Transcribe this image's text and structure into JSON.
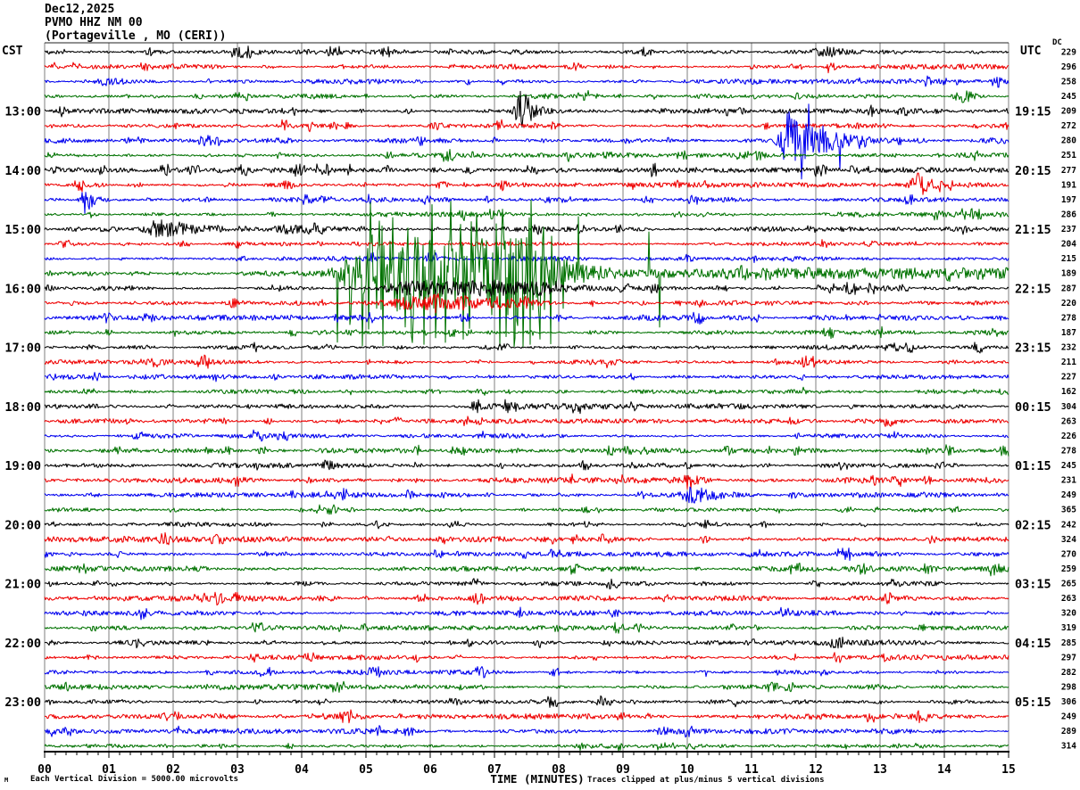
{
  "header": {
    "date": "Dec12,2025",
    "station_line": "PVMO HHZ NM 00",
    "location_line": "(Portageville , MO (CERI))"
  },
  "axes": {
    "left_tz": "CST",
    "right_tz": "UTC",
    "dc_label": "DC",
    "x_title": "TIME (MINUTES)",
    "x_tick_labels": [
      "00",
      "01",
      "02",
      "03",
      "04",
      "05",
      "06",
      "07",
      "08",
      "09",
      "10",
      "11",
      "12",
      "13",
      "14",
      "15"
    ]
  },
  "footer": {
    "division_note": "Each Vertical Division = 5000.00 microvolts",
    "clip_note": "Traces clipped at plus/minus 5 vertical divisions",
    "watermark": "M"
  },
  "chart_data": {
    "type": "line",
    "subtype": "helicorder-seismogram",
    "title": "Dec12,2025 PVMO HHZ NM 00 (Portageville , MO (CERI))",
    "xlabel": "TIME (MINUTES)",
    "x_range_minutes": [
      0,
      15
    ],
    "minutes_per_row": 15,
    "rows_per_hour": 4,
    "clip_divisions": 5,
    "microvolts_per_division": 5000,
    "grid_color": "#7f7f7f",
    "trace_colors": {
      "black": "#000000",
      "red": "#ee0000",
      "blue": "#0000ee",
      "green": "#007200"
    },
    "rows": [
      {
        "cst": "",
        "utc": "",
        "dc": 229,
        "color": "black"
      },
      {
        "cst": "",
        "utc": "",
        "dc": 296,
        "color": "red"
      },
      {
        "cst": "",
        "utc": "",
        "dc": 258,
        "color": "blue"
      },
      {
        "cst": "",
        "utc": "",
        "dc": 245,
        "color": "green"
      },
      {
        "cst": "13:00",
        "utc": "19:15",
        "dc": 209,
        "color": "black"
      },
      {
        "cst": "",
        "utc": "",
        "dc": 272,
        "color": "red"
      },
      {
        "cst": "",
        "utc": "",
        "dc": 280,
        "color": "blue"
      },
      {
        "cst": "",
        "utc": "",
        "dc": 251,
        "color": "green"
      },
      {
        "cst": "14:00",
        "utc": "20:15",
        "dc": 277,
        "color": "black"
      },
      {
        "cst": "",
        "utc": "",
        "dc": 191,
        "color": "red"
      },
      {
        "cst": "",
        "utc": "",
        "dc": 197,
        "color": "blue"
      },
      {
        "cst": "",
        "utc": "",
        "dc": 286,
        "color": "green"
      },
      {
        "cst": "15:00",
        "utc": "21:15",
        "dc": 237,
        "color": "black"
      },
      {
        "cst": "",
        "utc": "",
        "dc": 204,
        "color": "red"
      },
      {
        "cst": "",
        "utc": "",
        "dc": 215,
        "color": "blue"
      },
      {
        "cst": "",
        "utc": "",
        "dc": 189,
        "color": "green"
      },
      {
        "cst": "16:00",
        "utc": "22:15",
        "dc": 287,
        "color": "black"
      },
      {
        "cst": "",
        "utc": "",
        "dc": 220,
        "color": "red"
      },
      {
        "cst": "",
        "utc": "",
        "dc": 278,
        "color": "blue"
      },
      {
        "cst": "",
        "utc": "",
        "dc": 187,
        "color": "green"
      },
      {
        "cst": "17:00",
        "utc": "23:15",
        "dc": 232,
        "color": "black"
      },
      {
        "cst": "",
        "utc": "",
        "dc": 211,
        "color": "red"
      },
      {
        "cst": "",
        "utc": "",
        "dc": 227,
        "color": "blue"
      },
      {
        "cst": "",
        "utc": "",
        "dc": 162,
        "color": "green"
      },
      {
        "cst": "18:00",
        "utc": "00:15",
        "dc": 304,
        "color": "black"
      },
      {
        "cst": "",
        "utc": "",
        "dc": 263,
        "color": "red"
      },
      {
        "cst": "",
        "utc": "",
        "dc": 226,
        "color": "blue"
      },
      {
        "cst": "",
        "utc": "",
        "dc": 278,
        "color": "green"
      },
      {
        "cst": "19:00",
        "utc": "01:15",
        "dc": 245,
        "color": "black"
      },
      {
        "cst": "",
        "utc": "",
        "dc": 231,
        "color": "red"
      },
      {
        "cst": "",
        "utc": "",
        "dc": 249,
        "color": "blue"
      },
      {
        "cst": "",
        "utc": "",
        "dc": 365,
        "color": "green"
      },
      {
        "cst": "20:00",
        "utc": "02:15",
        "dc": 242,
        "color": "black"
      },
      {
        "cst": "",
        "utc": "",
        "dc": 324,
        "color": "red"
      },
      {
        "cst": "",
        "utc": "",
        "dc": 270,
        "color": "blue"
      },
      {
        "cst": "",
        "utc": "",
        "dc": 259,
        "color": "green"
      },
      {
        "cst": "21:00",
        "utc": "03:15",
        "dc": 265,
        "color": "black"
      },
      {
        "cst": "",
        "utc": "",
        "dc": 263,
        "color": "red"
      },
      {
        "cst": "",
        "utc": "",
        "dc": 320,
        "color": "blue"
      },
      {
        "cst": "",
        "utc": "",
        "dc": 319,
        "color": "green"
      },
      {
        "cst": "22:00",
        "utc": "04:15",
        "dc": 285,
        "color": "black"
      },
      {
        "cst": "",
        "utc": "",
        "dc": 297,
        "color": "red"
      },
      {
        "cst": "",
        "utc": "",
        "dc": 282,
        "color": "blue"
      },
      {
        "cst": "",
        "utc": "",
        "dc": 298,
        "color": "green"
      },
      {
        "cst": "23:00",
        "utc": "05:15",
        "dc": 306,
        "color": "black"
      },
      {
        "cst": "",
        "utc": "",
        "dc": 249,
        "color": "red"
      },
      {
        "cst": "",
        "utc": "",
        "dc": 289,
        "color": "blue"
      },
      {
        "cst": "",
        "utc": "",
        "dc": 314,
        "color": "green"
      }
    ],
    "events": [
      {
        "row": 0,
        "start": 11.5,
        "peak": 12.2,
        "end": 13.4,
        "amp": 0.35
      },
      {
        "row": 1,
        "start": 12.05,
        "peak": 12.2,
        "end": 12.6,
        "amp": 0.45
      },
      {
        "row": 2,
        "start": 0.5,
        "peak": 0.9,
        "end": 2.2,
        "amp": 0.3
      },
      {
        "row": 3,
        "start": 14.05,
        "peak": 14.3,
        "end": 14.75,
        "amp": 0.55
      },
      {
        "row": 4,
        "start": 7.25,
        "peak": 7.42,
        "end": 8.0,
        "amp": 1.6,
        "sp": 0.06,
        "smax": 3.2
      },
      {
        "row": 6,
        "start": 11.32,
        "peak": 11.55,
        "end": 13.3,
        "amp": 1.9,
        "sp": 0.05,
        "smax": 2.6
      },
      {
        "row": 9,
        "start": 13.35,
        "peak": 13.6,
        "end": 14.15,
        "amp": 0.8
      },
      {
        "row": 10,
        "start": 0.5,
        "peak": 0.62,
        "end": 1.05,
        "amp": 1.2,
        "sp": 0.12,
        "smax": 2.6
      },
      {
        "row": 12,
        "start": 1.35,
        "peak": 1.75,
        "end": 3.4,
        "amp": 0.75
      },
      {
        "row": 12,
        "start": 3.0,
        "peak": 3.8,
        "end": 5.6,
        "amp": 0.3
      },
      {
        "row": 15,
        "start": 3.5,
        "peak": 5.15,
        "pe": 7.5,
        "end": 9.9,
        "amp": 2.3,
        "rexp": 4,
        "sp": 0.25,
        "smax": 5
      },
      {
        "row": 15,
        "start": 9.0,
        "peak": 10.0,
        "pe": 15.0,
        "end": 15.0,
        "amp": 0.22
      },
      {
        "row": 16,
        "start": 4.9,
        "peak": 5.5,
        "pe": 7.8,
        "end": 8.7,
        "amp": 0.42
      },
      {
        "row": 17,
        "start": 5.0,
        "peak": 5.6,
        "pe": 7.6,
        "end": 8.3,
        "amp": 0.3
      },
      {
        "row": 28,
        "start": 8.25,
        "peak": 8.4,
        "end": 8.7,
        "amp": 0.45
      },
      {
        "row": 29,
        "start": 9.85,
        "peak": 10.0,
        "end": 10.55,
        "amp": 0.55
      },
      {
        "row": 30,
        "start": 9.75,
        "peak": 10.1,
        "end": 11.3,
        "amp": 0.5
      },
      {
        "row": 44,
        "start": 8.5,
        "peak": 8.68,
        "end": 9.05,
        "amp": 0.5
      }
    ]
  }
}
